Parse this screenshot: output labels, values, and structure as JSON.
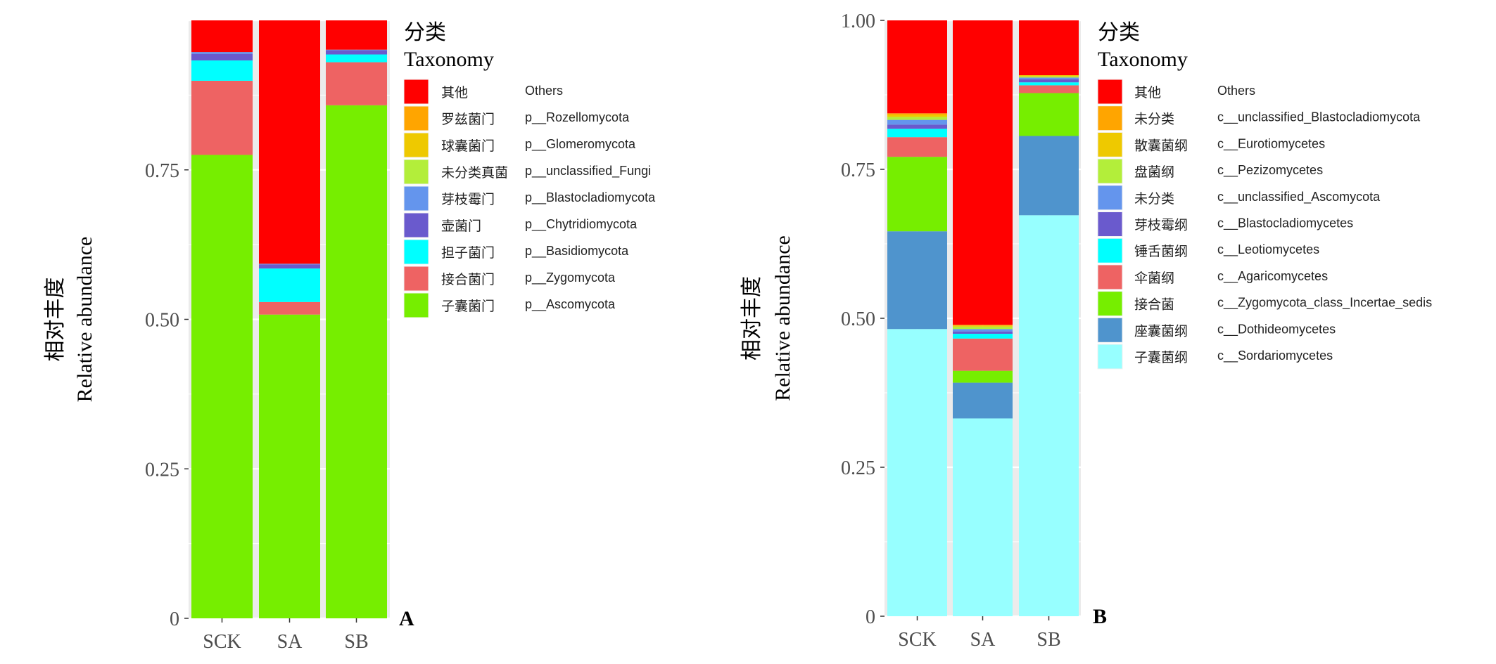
{
  "chart_data": [
    {
      "type": "bar",
      "stacked": true,
      "panel_label": "A",
      "ylabel_zh": "相对丰度",
      "ylabel": "Relative abundance",
      "legend_title_zh": "分类",
      "legend_title": "Taxonomy",
      "legend_position": "right",
      "categories": [
        "SCK",
        "SA",
        "SB"
      ],
      "ylim": [
        0,
        1
      ],
      "yticks": [
        "0",
        "0.25",
        "0.50",
        "0.75"
      ],
      "ytick_values": [
        0,
        0.25,
        0.5,
        0.75
      ],
      "series": [
        {
          "zh": "其他",
          "name": "Others",
          "color": "#FF0000",
          "values": [
            0.053,
            0.407,
            0.049
          ]
        },
        {
          "zh": "罗兹菌门",
          "name": "p__Rozellomycota",
          "color": "#FFA500",
          "values": [
            0,
            0,
            0
          ]
        },
        {
          "zh": "球囊菌门",
          "name": "p__Glomeromycota",
          "color": "#EEC900",
          "values": [
            0,
            0,
            0
          ]
        },
        {
          "zh": "未分类真菌",
          "name": "p__unclassified_Fungi",
          "color": "#B3EE3A",
          "values": [
            0,
            0,
            0
          ]
        },
        {
          "zh": "芽枝霉门",
          "name": "p__Blastocladiomycota",
          "color": "#6495ED",
          "values": [
            0.003,
            0.001,
            0.001
          ]
        },
        {
          "zh": "壶菌门",
          "name": "p__Chytridiomycota",
          "color": "#6A5ACD",
          "values": [
            0.011,
            0.007,
            0.007
          ]
        },
        {
          "zh": "担子菌门",
          "name": "p__Basidiomycota",
          "color": "#00FFFF",
          "values": [
            0.034,
            0.056,
            0.013
          ]
        },
        {
          "zh": "接合菌门",
          "name": "p__Zygomycota",
          "color": "#EE6363",
          "values": [
            0.124,
            0.021,
            0.072
          ]
        },
        {
          "zh": "子囊菌门",
          "name": "p__Ascomycota",
          "color": "#76EE00",
          "values": [
            0.775,
            0.508,
            0.858
          ]
        }
      ]
    },
    {
      "type": "bar",
      "stacked": true,
      "panel_label": "B",
      "ylabel_zh": "相对丰度",
      "ylabel": "Relative abundance",
      "legend_title_zh": "分类",
      "legend_title": "Taxonomy",
      "legend_position": "right",
      "categories": [
        "SCK",
        "SA",
        "SB"
      ],
      "ylim": [
        0,
        1
      ],
      "yticks": [
        "0",
        "0.25",
        "0.50",
        "0.75",
        "1.00"
      ],
      "ytick_values": [
        0,
        0.25,
        0.5,
        0.75,
        1
      ],
      "series": [
        {
          "zh": "其他",
          "name": "Others",
          "color": "#FF0000",
          "values": [
            0.156,
            0.511,
            0.092
          ]
        },
        {
          "zh": "未分类",
          "name": "c__unclassified_Blastocladiomycota",
          "color": "#FFA500",
          "values": [
            0.002,
            0.001,
            0
          ]
        },
        {
          "zh": "散囊菌纲",
          "name": "c__Eurotiomycetes",
          "color": "#EEC900",
          "values": [
            0.004,
            0.002,
            0.002
          ]
        },
        {
          "zh": "盘菌纲",
          "name": "c__Pezizomycetes",
          "color": "#B3EE3A",
          "values": [
            0.005,
            0.004,
            0.002
          ]
        },
        {
          "zh": "未分类",
          "name": "c__unclassified_Ascomycota",
          "color": "#6495ED",
          "values": [
            0.008,
            0.004,
            0.003
          ]
        },
        {
          "zh": "芽枝霉纲",
          "name": "c__Blastocladiomycetes",
          "color": "#6A5ACD",
          "values": [
            0.007,
            0.004,
            0.005
          ]
        },
        {
          "zh": "锤舌菌纲",
          "name": "c__Leotiomycetes",
          "color": "#00FFFF",
          "values": [
            0.014,
            0.008,
            0.005
          ]
        },
        {
          "zh": "伞菌纲",
          "name": "c__Agaricomycetes",
          "color": "#EE6363",
          "values": [
            0.033,
            0.054,
            0.013
          ]
        },
        {
          "zh": "接合菌",
          "name": "c__Zygomycota_class_Incertae_sedis",
          "color": "#76EE00",
          "values": [
            0.125,
            0.02,
            0.072
          ]
        },
        {
          "zh": "座囊菌纲",
          "name": "c__Dothideomycetes",
          "color": "#4F94CD",
          "values": [
            0.164,
            0.06,
            0.133
          ]
        },
        {
          "zh": "子囊菌纲",
          "name": "c__Sordariomycetes",
          "color": "#97FFFF",
          "values": [
            0.482,
            0.332,
            0.673
          ]
        }
      ]
    }
  ]
}
